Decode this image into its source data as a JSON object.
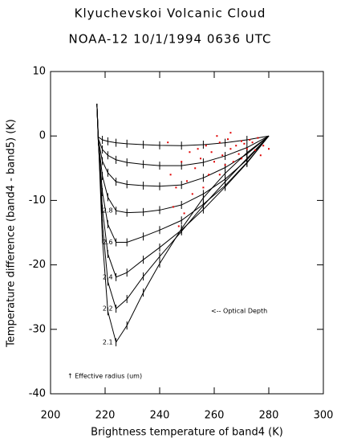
{
  "chart_data": {
    "type": "line",
    "title": "Klyuchevskoi Volcanic Cloud",
    "subtitle": "NOAA-12  10/1/1994  0636 UTC",
    "xlabel": "Brightness temperature of band4 (K)",
    "ylabel": "Temperature difference (band4 - band5) (K)",
    "xlim": [
      200,
      300
    ],
    "ylim": [
      -40,
      10
    ],
    "xticks": [
      200,
      220,
      240,
      260,
      280,
      300
    ],
    "yticks": [
      -40,
      -30,
      -20,
      -10,
      0,
      10
    ],
    "annotations": [
      "<-- Optical Depth",
      "↑ Effective radius (um)"
    ],
    "x": [
      280,
      272,
      264,
      256,
      248,
      240,
      234,
      228,
      224,
      221,
      219,
      217.5,
      217
    ],
    "series": [
      {
        "color": "#000000",
        "values": [
          0,
          -0.6,
          -1.05,
          -1.35,
          -1.5,
          -1.46,
          -1.35,
          -1.2,
          -1.05,
          -0.83,
          -0.6,
          -0.15,
          5
        ]
      },
      {
        "color": "#000000",
        "values": [
          0,
          -1.8,
          -3.1,
          -4.1,
          -4.6,
          -4.6,
          -4.4,
          -4.1,
          -3.7,
          -3.0,
          -2.1,
          -0.4,
          5
        ]
      },
      {
        "color": "#000000",
        "values": [
          0,
          -2.8,
          -4.9,
          -6.5,
          -7.6,
          -7.8,
          -7.7,
          -7.5,
          -7.1,
          -5.7,
          -3.9,
          -0.6,
          5
        ]
      },
      {
        "color": "#000000",
        "label": "2.8",
        "values": [
          0,
          -3.7,
          -6.7,
          -9.0,
          -10.7,
          -11.5,
          -11.8,
          -11.9,
          -11.6,
          -9.5,
          -6.2,
          -0.8,
          5
        ]
      },
      {
        "color": "#000000",
        "label": "2.6",
        "values": [
          0,
          -4.1,
          -7.7,
          -10.6,
          -13.1,
          -14.6,
          -15.6,
          -16.5,
          -16.5,
          -13.7,
          -8.7,
          -0.8,
          5
        ]
      },
      {
        "color": "#000000",
        "label": "2.4",
        "values": [
          0,
          -4.2,
          -7.9,
          -11.4,
          -14.6,
          -17.3,
          -19.2,
          -21.2,
          -21.9,
          -18.3,
          -11.3,
          -0.7,
          5
        ]
      },
      {
        "color": "#000000",
        "label": "2.2",
        "values": [
          0,
          -3.5,
          -7.1,
          -10.8,
          -14.8,
          -18.7,
          -21.8,
          -25.3,
          -26.8,
          -22.6,
          -13.6,
          -0.4,
          5
        ]
      },
      {
        "color": "#000000",
        "label": "2.1",
        "values": [
          0,
          -2.6,
          -5.8,
          -9.6,
          -14.4,
          -19.8,
          -24.3,
          -29.4,
          -32.0,
          -27.2,
          -16.0,
          0,
          5
        ]
      },
      {
        "type": "scatter",
        "color": "#e00000",
        "x": [
          262,
          265,
          268,
          270,
          272,
          274,
          276,
          259,
          263,
          266,
          269,
          271,
          273,
          275,
          257,
          260,
          264,
          255,
          253,
          258,
          250,
          252,
          248,
          246,
          245,
          249,
          244,
          247,
          256,
          262,
          267,
          278,
          280,
          261,
          266,
          254,
          251,
          243,
          270,
          277
        ],
        "values": [
          -1,
          -0.5,
          -1.5,
          -0.8,
          -2,
          -1,
          -0.3,
          -2.5,
          -3,
          -2,
          -2.8,
          -1.2,
          -0.6,
          -2.2,
          -1.5,
          -4,
          -4.5,
          -3.5,
          -5,
          -6,
          -7,
          -9,
          -4,
          -8,
          -11,
          -12,
          -6,
          -14,
          -8,
          -6,
          -4,
          -1.5,
          -2,
          0,
          0.5,
          -2,
          -2.5,
          -1,
          -3.5,
          -3
        ]
      }
    ]
  }
}
